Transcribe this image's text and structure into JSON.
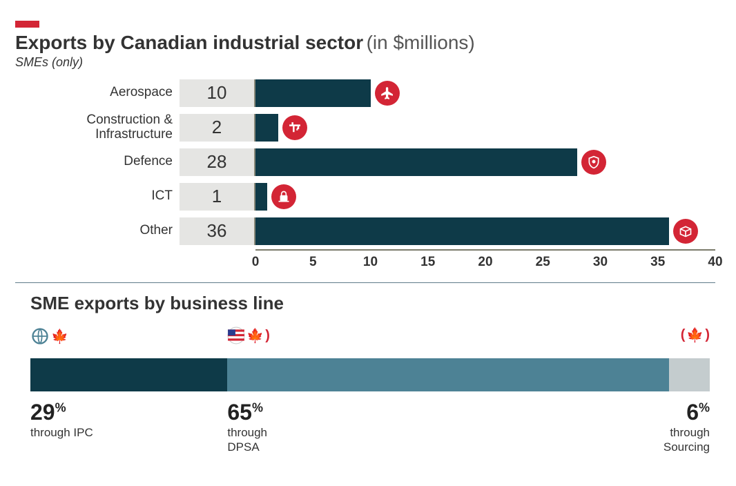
{
  "colors": {
    "accent_red": "#d32535",
    "bar_dark": "#0e3a48",
    "bar_teal": "#4d8295",
    "bar_light": "#c4ccce",
    "value_box_bg": "#e5e5e3",
    "axis_color": "#7a7a6a",
    "text": "#333333",
    "divider": "#5e7b88"
  },
  "top_chart": {
    "title_main": "Exports by Canadian industrial sector",
    "title_paren": "(in $millions)",
    "subtitle": "SMEs (only)",
    "type": "bar",
    "xlim": [
      0,
      40
    ],
    "ticks": [
      0,
      5,
      10,
      15,
      20,
      25,
      30,
      35,
      40
    ],
    "rows": [
      {
        "label": "Aerospace",
        "value": 10,
        "icon": "plane"
      },
      {
        "label": "Construction & Infrastructure",
        "value": 2,
        "icon": "crane"
      },
      {
        "label": "Defence",
        "value": 28,
        "icon": "shield"
      },
      {
        "label": "ICT",
        "value": 1,
        "icon": "lock"
      },
      {
        "label": "Other",
        "value": 36,
        "icon": "box"
      }
    ],
    "bar_color": "#0e3a48",
    "icon_badge_color": "#d32535",
    "label_fontsize": 19,
    "value_fontsize": 26,
    "tick_fontsize": 19
  },
  "bottom_chart": {
    "title": "SME exports by business line",
    "type": "stacked_bar_pct",
    "segments": [
      {
        "pct": 29,
        "label_line1": "through IPC",
        "color": "#0e3a48",
        "icon": "globe-maple"
      },
      {
        "pct": 65,
        "label_line1": "through",
        "label_line2": "DPSA",
        "color": "#4d8295",
        "icon": "usflag-maple"
      },
      {
        "pct": 6,
        "label_line1": "through",
        "label_line2": "Sourcing",
        "color": "#c4ccce",
        "icon": "maple-paren"
      }
    ],
    "pct_fontsize": 32,
    "through_fontsize": 17
  }
}
